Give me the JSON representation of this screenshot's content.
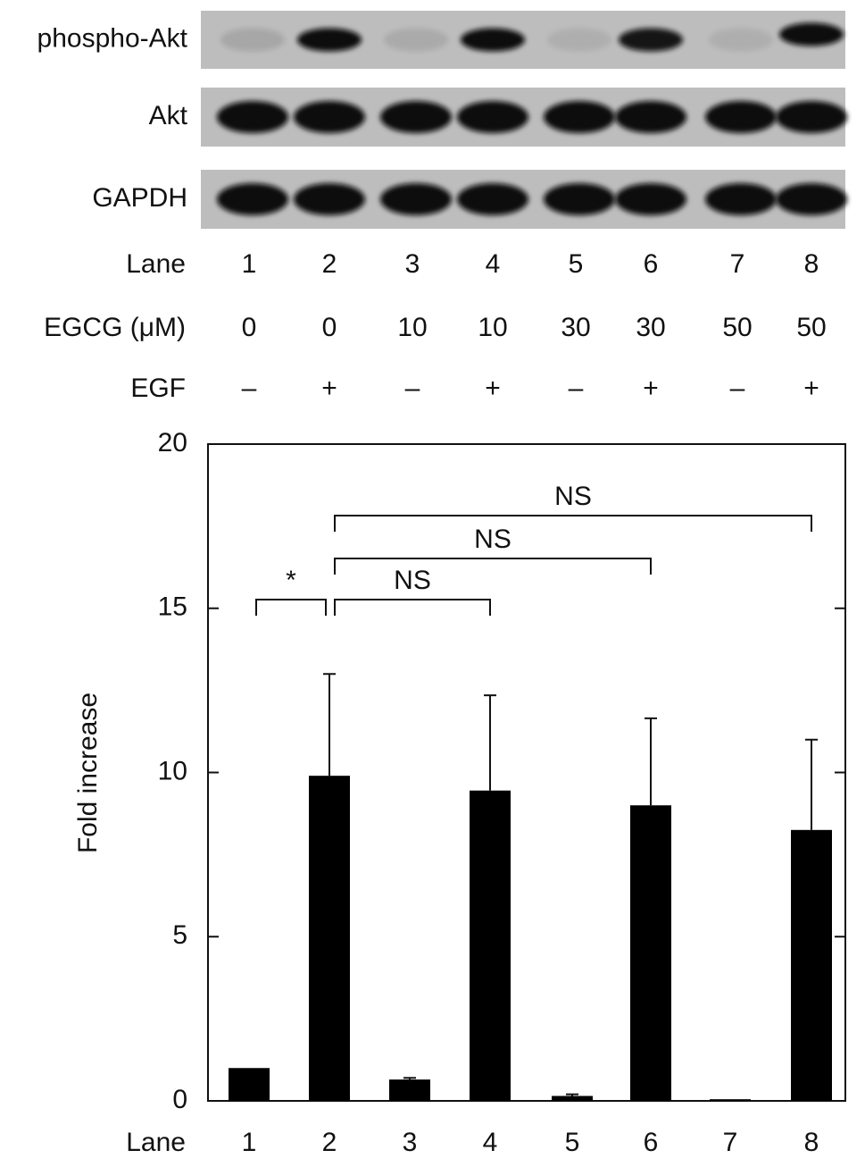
{
  "blot": {
    "strips": [
      "phospho-Akt",
      "Akt",
      "GAPDH"
    ],
    "rows": [
      {
        "label": "Lane",
        "cells": [
          "1",
          "2",
          "3",
          "4",
          "5",
          "6",
          "7",
          "8"
        ]
      },
      {
        "label": "EGCG (μM)",
        "cells": [
          "0",
          "0",
          "10",
          "10",
          "30",
          "30",
          "50",
          "50"
        ]
      },
      {
        "label": "EGF",
        "cells": [
          "–",
          "+",
          "–",
          "+",
          "–",
          "+",
          "–",
          "+"
        ]
      }
    ]
  },
  "chart_data": {
    "type": "bar",
    "x_label": "Lane",
    "y_label": "Fold increase",
    "categories": [
      "1",
      "2",
      "3",
      "4",
      "5",
      "6",
      "7",
      "8"
    ],
    "values": [
      1.0,
      9.9,
      0.65,
      9.45,
      0.15,
      9.0,
      0.05,
      8.25
    ],
    "errors": [
      0,
      3.1,
      0.05,
      2.9,
      0.05,
      2.65,
      0,
      2.75
    ],
    "color": "#000000",
    "ylim": [
      0,
      20
    ],
    "yticks": [
      0,
      5,
      10,
      15,
      20
    ],
    "comparisons": [
      {
        "label": "*",
        "from": "1",
        "to": "2"
      },
      {
        "label": "NS",
        "from": "2",
        "to": "4"
      },
      {
        "label": "NS",
        "from": "2",
        "to": "6"
      },
      {
        "label": "NS",
        "from": "2",
        "to": "8"
      }
    ]
  }
}
